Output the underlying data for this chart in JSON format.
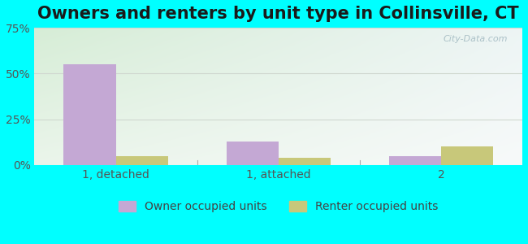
{
  "title": "Owners and renters by unit type in Collinsville, CT",
  "categories": [
    "1, detached",
    "1, attached",
    "2"
  ],
  "owner_values": [
    55.0,
    13.0,
    5.0
  ],
  "renter_values": [
    5.0,
    4.0,
    10.0
  ],
  "owner_color": "#c4a8d4",
  "renter_color": "#c8c87a",
  "ylim": [
    0,
    75
  ],
  "yticks": [
    0,
    25,
    50,
    75
  ],
  "yticklabels": [
    "0%",
    "25%",
    "50%",
    "75%"
  ],
  "bar_width": 0.32,
  "fig_bg_color": "#00ffff",
  "title_fontsize": 15,
  "axis_label_fontsize": 10,
  "legend_fontsize": 10,
  "watermark": "City-Data.com"
}
